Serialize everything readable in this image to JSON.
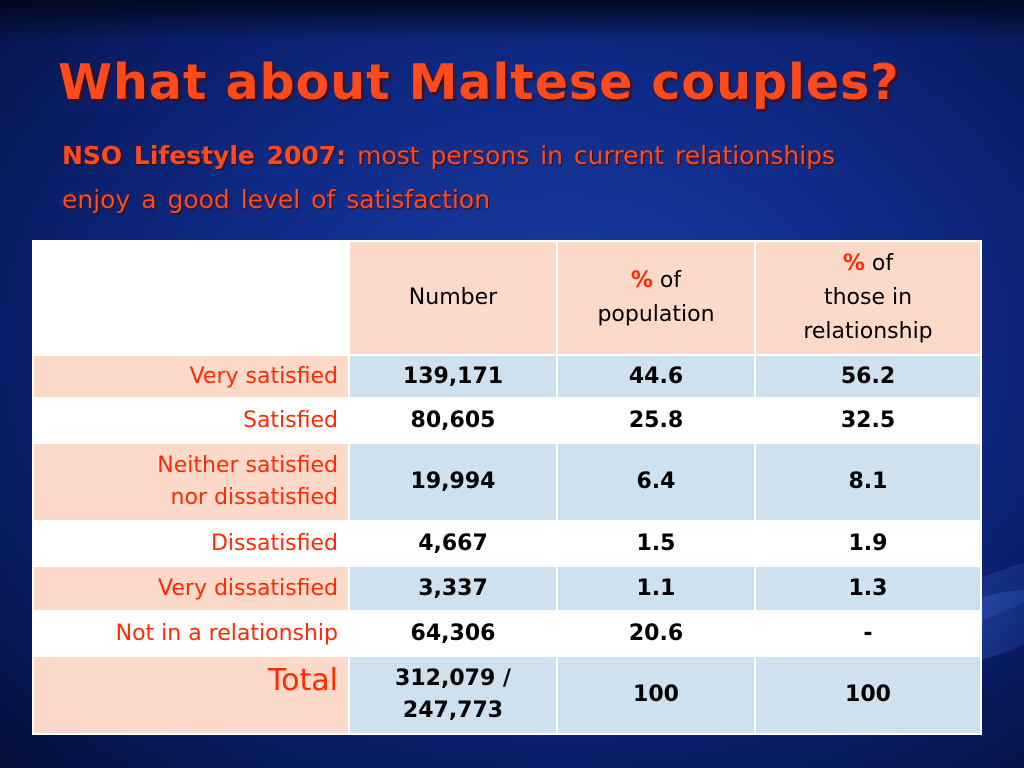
{
  "slide": {
    "title": "What about Maltese couples?",
    "subtitle_lead": "NSO Lifestyle 2007:",
    "subtitle_rest": " most persons in current relationships enjoy a good level of satisfaction"
  },
  "table": {
    "headers": {
      "number": "Number",
      "population_pct": "%",
      "population_of": " of",
      "population_label": "population",
      "relationship_pct": "%",
      "relationship_of": " of",
      "relationship_line1": "those in",
      "relationship_line2": "relationship"
    },
    "rows": [
      {
        "label": "Very satisfied",
        "number": "139,171",
        "population": "44.6",
        "relationship": "56.2"
      },
      {
        "label": "Satisfied",
        "number": "80,605",
        "population": "25.8",
        "relationship": "32.5"
      },
      {
        "label_line1": "Neither satisfied",
        "label_line2": "nor dissatisfied",
        "number": "19,994",
        "population": "6.4",
        "relationship": "8.1"
      },
      {
        "label": "Dissatisfied",
        "number": "4,667",
        "population": "1.5",
        "relationship": "1.9"
      },
      {
        "label": "Very dissatisfied",
        "number": "3,337",
        "population": "1.1",
        "relationship": "1.3"
      },
      {
        "label": "Not in a relationship",
        "number": "64,306",
        "population": "20.6",
        "relationship": "-"
      }
    ],
    "total": {
      "label": "Total",
      "number_line1": "312,079 /",
      "number_line2": "247,773",
      "population": "100",
      "relationship": "100"
    }
  }
}
